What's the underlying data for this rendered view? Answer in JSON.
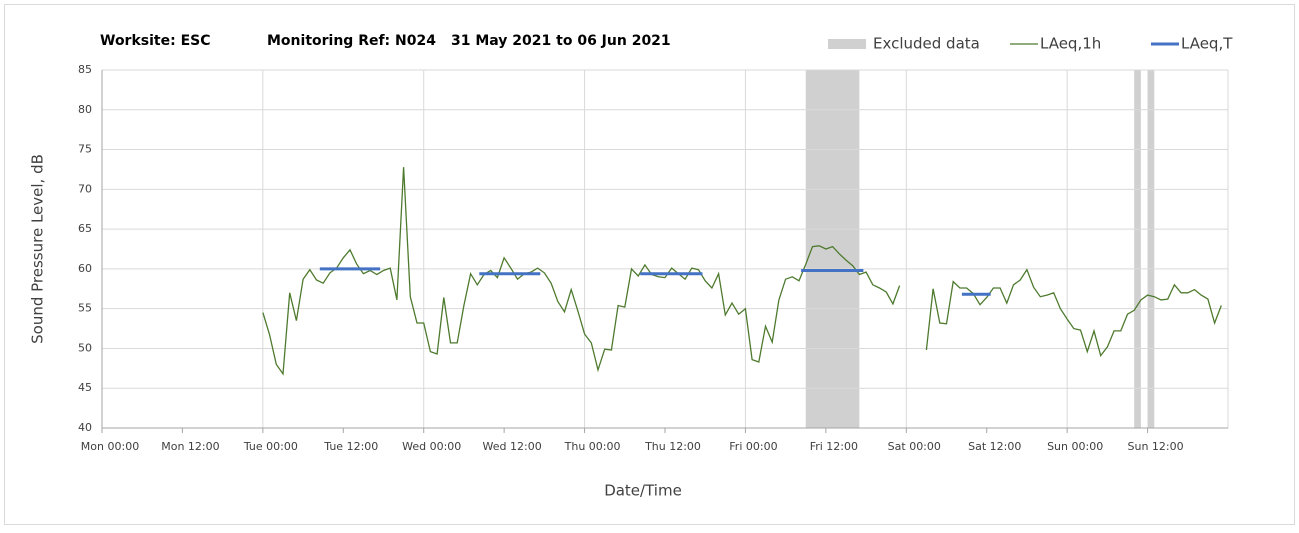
{
  "chart_data": {
    "type": "line",
    "title_parts": [
      "Worksite: ESC",
      "Monitoring Ref: N024",
      "31 May 2021 to 06 Jun 2021"
    ],
    "ylabel": "Sound Pressure Level, dB",
    "xlabel": "Date/Time",
    "xlim": [
      0,
      168
    ],
    "xticks": [
      {
        "value": 0,
        "label": "Mon 00:00"
      },
      {
        "value": 12,
        "label": "Mon 12:00"
      },
      {
        "value": 24,
        "label": "Tue 00:00"
      },
      {
        "value": 36,
        "label": "Tue 12:00"
      },
      {
        "value": 48,
        "label": "Wed 00:00"
      },
      {
        "value": 60,
        "label": "Wed 12:00"
      },
      {
        "value": 72,
        "label": "Thu 00:00"
      },
      {
        "value": 84,
        "label": "Thu 12:00"
      },
      {
        "value": 96,
        "label": "Fri 00:00"
      },
      {
        "value": 108,
        "label": "Fri 12:00"
      },
      {
        "value": 120,
        "label": "Sat 00:00"
      },
      {
        "value": 132,
        "label": "Sat 12:00"
      },
      {
        "value": 144,
        "label": "Sun 00:00"
      },
      {
        "value": 156,
        "label": "Sun 12:00"
      }
    ],
    "xgrid": [
      24,
      48,
      72,
      96,
      120,
      144,
      168
    ],
    "ylim": [
      40,
      85
    ],
    "yticks": [
      40,
      45,
      50,
      55,
      60,
      65,
      70,
      75,
      80,
      85
    ],
    "grid": true,
    "excluded": {
      "name": "Excluded data",
      "color": "#d0d0d0",
      "ranges": [
        [
          105,
          113
        ],
        [
          154,
          155
        ],
        [
          156,
          157
        ]
      ]
    },
    "series": [
      {
        "name": "LAeq,1h",
        "color": "#4e7a2e",
        "x": [
          24,
          25,
          26,
          27,
          28,
          29,
          30,
          31,
          32,
          33,
          34,
          35,
          36,
          37,
          38,
          39,
          40,
          41,
          42,
          43,
          44,
          45,
          46,
          47,
          48,
          49,
          50,
          51,
          52,
          53,
          54,
          55,
          56,
          57,
          58,
          59,
          60,
          61,
          62,
          63,
          64,
          65,
          66,
          67,
          68,
          69,
          70,
          71,
          72,
          73,
          74,
          75,
          76,
          77,
          78,
          79,
          80,
          81,
          82,
          83,
          84,
          85,
          86,
          87,
          88,
          89,
          90,
          91,
          92,
          93,
          94,
          95,
          96,
          97,
          98,
          99,
          100,
          101,
          102,
          103,
          104,
          105,
          106,
          107,
          108,
          109,
          110,
          111,
          112,
          113,
          114,
          115,
          116,
          117,
          118,
          119,
          120,
          121,
          122,
          123,
          124,
          125,
          126,
          127,
          128,
          129,
          130,
          131,
          132,
          133,
          134,
          135,
          136,
          137,
          138,
          139,
          140,
          141,
          142,
          143,
          144,
          145,
          146,
          147,
          148,
          149,
          150,
          151,
          152,
          153,
          154,
          155,
          156,
          157,
          158,
          159,
          160,
          161,
          162,
          163,
          164,
          165,
          166,
          167
        ],
        "values": [
          54.5,
          51.7,
          48,
          46.8,
          57,
          53.5,
          58.7,
          59.9,
          58.6,
          58.2,
          59.5,
          60.1,
          61.4,
          62.4,
          60.6,
          59.4,
          59.8,
          59.3,
          59.8,
          60.1,
          56.1,
          72.8,
          56.5,
          53.2,
          53.2,
          49.6,
          49.3,
          56.4,
          50.7,
          50.7,
          55.4,
          59.4,
          58,
          59.3,
          59.8,
          58.9,
          61.4,
          60.1,
          58.7,
          59.4,
          59.6,
          60.1,
          59.5,
          58.2,
          55.9,
          54.6,
          57.4,
          54.7,
          51.8,
          50.7,
          47.3,
          49.9,
          49.8,
          55.4,
          55.2,
          60,
          59.1,
          60.5,
          59.3,
          59,
          58.9,
          60.1,
          59.4,
          58.7,
          60.1,
          59.9,
          58.5,
          57.6,
          59.4,
          54.2,
          55.7,
          54.3,
          55,
          48.6,
          48.3,
          52.8,
          50.8,
          56.1,
          58.7,
          59,
          58.5,
          60.6,
          62.8,
          62.9,
          62.5,
          62.8,
          61.9,
          61.1,
          60.4,
          59.3,
          59.6,
          58,
          57.6,
          57.1,
          55.6,
          57.9,
          null,
          null,
          null,
          49.8,
          57.5,
          53.2,
          53.1,
          58.4,
          57.6,
          57.6,
          56.9,
          55.5,
          56.4,
          57.6,
          57.6,
          55.7,
          58,
          58.6,
          59.9,
          57.7,
          56.5,
          56.7,
          57,
          55,
          53.7,
          52.5,
          52.3,
          49.6,
          52.2,
          49.1,
          50.2,
          52.2,
          52.2,
          54.3,
          54.8,
          56.1,
          56.7,
          56.5,
          56.1,
          56.2,
          58,
          57,
          57,
          57.4,
          56.7,
          56.2,
          53.2,
          55.4
        ]
      },
      {
        "name": "LAeq,T",
        "color": "#4472c4",
        "x": [
          32.5,
          41.5,
          null,
          56.3,
          65.4,
          null,
          80.3,
          89.6,
          null,
          104.3,
          113.6,
          null,
          128.3,
          132.6
        ],
        "values": [
          60,
          60,
          null,
          59.4,
          59.4,
          null,
          59.4,
          59.4,
          null,
          59.8,
          59.8,
          null,
          56.8,
          56.8
        ]
      }
    ]
  }
}
